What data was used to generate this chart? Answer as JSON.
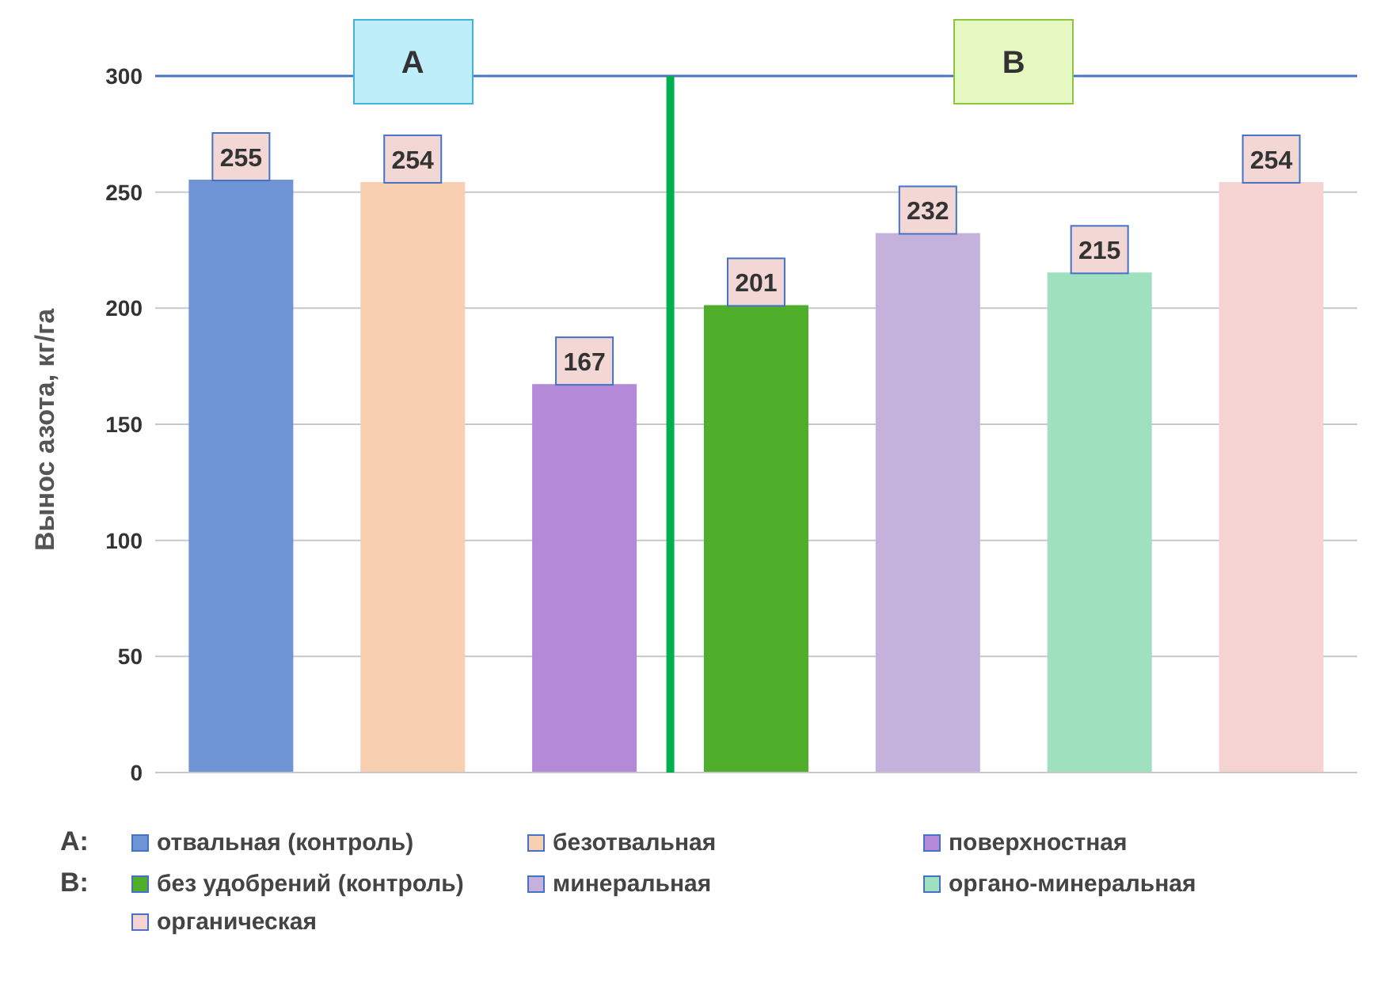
{
  "chart_data": {
    "type": "bar",
    "ylabel": "Вынос азота, кг/га",
    "categories": [
      null,
      null,
      null,
      null,
      null,
      null,
      null
    ],
    "stacked": true,
    "series": [
      {
        "name": "отвальная (контроль)",
        "color": "#6f94d6",
        "values": [
          255,
          null,
          null,
          null,
          null,
          null,
          null
        ]
      },
      {
        "name": "безотвальная",
        "color": "#f8cfb0",
        "values": [
          null,
          254,
          null,
          null,
          null,
          null,
          null
        ]
      },
      {
        "name": "поверхностная",
        "color": "#b48ad8",
        "values": [
          null,
          null,
          167,
          null,
          null,
          null,
          null
        ]
      },
      {
        "name": "без удобрений (контроль)",
        "color": "#4fae2a",
        "values": [
          null,
          null,
          null,
          201,
          null,
          null,
          null
        ]
      },
      {
        "name": "минеральная",
        "color": "#c4b2dd",
        "values": [
          null,
          null,
          null,
          null,
          232,
          null,
          null
        ]
      },
      {
        "name": "органо-минеральная",
        "color": "#9fe0bf",
        "values": [
          null,
          null,
          null,
          null,
          null,
          215,
          null
        ]
      },
      {
        "name": "органическая",
        "color": "#f6d3d3",
        "values": [
          null,
          null,
          null,
          null,
          null,
          null,
          254
        ]
      }
    ],
    "ylim": [
      0,
      300
    ],
    "yticks": [
      0,
      50,
      100,
      150,
      200,
      250,
      300
    ],
    "grid": "y",
    "data_labels": true,
    "tick_labels": "y",
    "legend": "bottom",
    "annotations": [
      "A",
      "B",
      "A:",
      "B:"
    ]
  }
}
